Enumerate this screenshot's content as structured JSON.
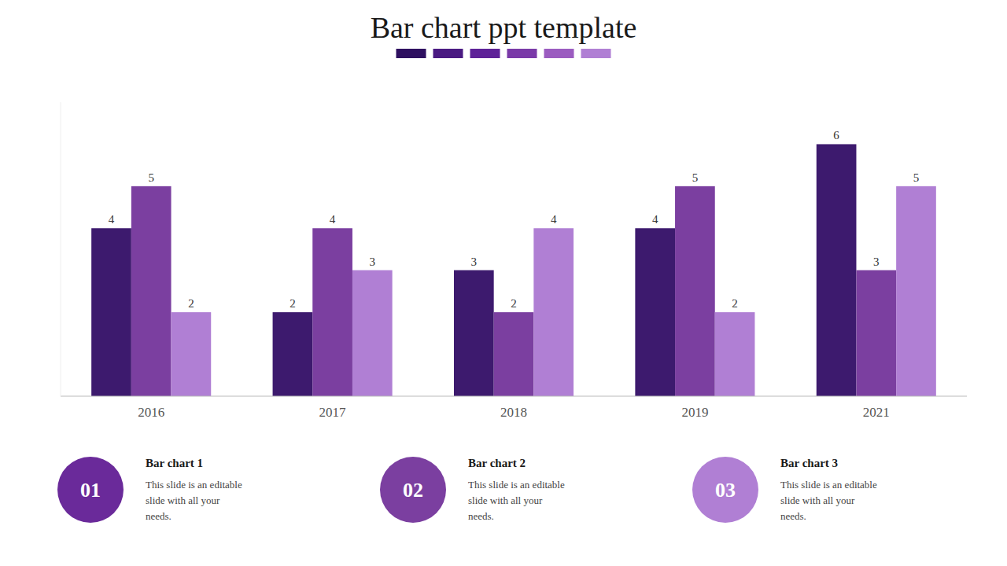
{
  "chart_data": {
    "type": "bar",
    "title": "Bar chart ppt template",
    "categories": [
      "2016",
      "2017",
      "2018",
      "2019",
      "2021"
    ],
    "series": [
      {
        "name": "Bar chart 1",
        "color": "#3d1a6e",
        "values": [
          4,
          2,
          3,
          4,
          6
        ]
      },
      {
        "name": "Bar chart 2",
        "color": "#7b3fa0",
        "values": [
          5,
          4,
          2,
          5,
          3
        ]
      },
      {
        "name": "Bar chart 3",
        "color": "#b07fd4",
        "values": [
          2,
          3,
          4,
          2,
          5
        ]
      }
    ],
    "ylim": [
      0,
      7
    ],
    "data_labels": true,
    "grid": false,
    "tick_labels": "x",
    "annotations": [
      {
        "label": "01",
        "text": "This slide is an editable\nslide with all your\nneeds.",
        "color": "#6a2a9a"
      },
      {
        "label": "02",
        "text": "This slide is an editable\nslide with all your\nneeds.",
        "color": "#7b3fa0"
      },
      {
        "label": "03",
        "text": "This slide is an editable\nslide with all your\nneeds.",
        "color": "#b07fd4"
      }
    ]
  }
}
